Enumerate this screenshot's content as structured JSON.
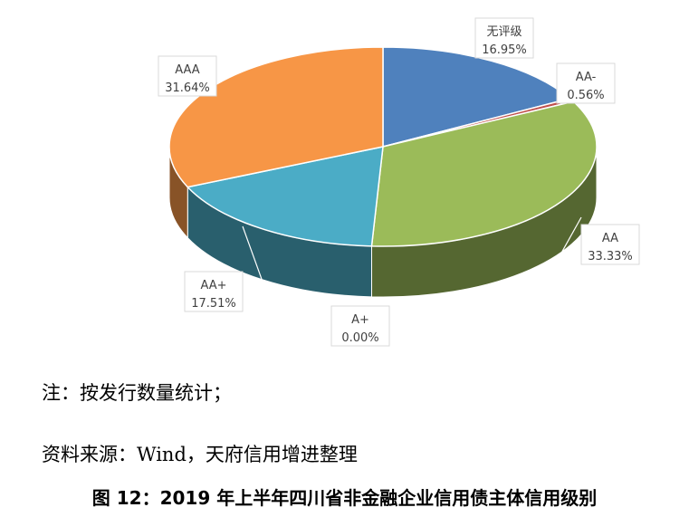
{
  "chart_data": {
    "type": "pie",
    "categories": [
      "无评级",
      "AA-",
      "AA",
      "A+",
      "AA+",
      "AAA"
    ],
    "values": [
      16.95,
      0.56,
      33.33,
      0.0,
      17.51,
      31.64
    ],
    "display_values": [
      "16.95%",
      "0.56%",
      "33.33%",
      "0.00%",
      "17.51%",
      "31.64%"
    ],
    "unit": "%",
    "colors": [
      "#4f81bd",
      "#c0504d",
      "#9bbb59",
      "#8064a2",
      "#4bacc6",
      "#f79646"
    ],
    "style": "3d-pie"
  },
  "notes": {
    "note1": "注：按发行数量统计；",
    "source": "资料来源：Wind，天府信用增进整理"
  },
  "caption": "图 12：2019 年上半年四川省非金融企业信用债主体信用级别"
}
